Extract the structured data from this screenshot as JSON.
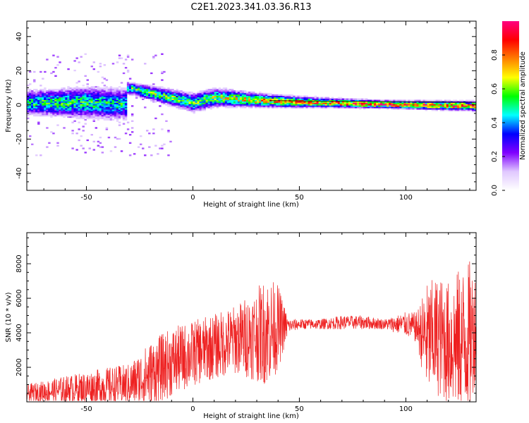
{
  "figure": {
    "title": "C2E1.2023.341.03.36.R13"
  },
  "chart_data": [
    {
      "type": "heatmap",
      "xlabel": "Height of straight line (km)",
      "ylabel": "Frequency (Hz)",
      "xlim": [
        -78,
        133
      ],
      "ylim": [
        -50,
        49
      ],
      "x_ticks": [
        -50,
        0,
        50,
        100
      ],
      "y_ticks": [
        -40,
        -20,
        0,
        20,
        40
      ],
      "grid": false,
      "colorbar": {
        "label": "Normalized spectral amplitude",
        "range": [
          0.0,
          1.0
        ],
        "ticks": [
          "0.0",
          "0.2",
          "0.4",
          "0.6",
          "0.8"
        ],
        "tick_values": [
          0.0,
          0.2,
          0.4,
          0.6,
          0.8
        ],
        "colors": [
          "#ffffff",
          "#e0c8ff",
          "#8000ff",
          "#0000ff",
          "#00ffff",
          "#00ff00",
          "#ffff00",
          "#ff8000",
          "#ff0000",
          "#ff0080"
        ]
      },
      "ridge": {
        "description_points": [
          {
            "x": -75,
            "center": 1,
            "spread": 4,
            "amp": 0.55
          },
          {
            "x": -50,
            "center": 1,
            "spread": 5,
            "amp": 0.55
          },
          {
            "x": -30,
            "center": 0,
            "spread": 5,
            "amp": 0.5
          },
          {
            "x": -29,
            "center": 9,
            "spread": 2,
            "amp": 0.6
          },
          {
            "x": 0,
            "center": 1,
            "spread": 3,
            "amp": 0.6
          },
          {
            "x": 10,
            "center": 4,
            "spread": 3,
            "amp": 0.65
          },
          {
            "x": 35,
            "center": 2,
            "spread": 2,
            "amp": 0.8
          },
          {
            "x": 60,
            "center": 1,
            "spread": 1.5,
            "amp": 0.85
          },
          {
            "x": 90,
            "center": 0,
            "spread": 1.2,
            "amp": 0.95
          },
          {
            "x": 133,
            "center": -1,
            "spread": 1.5,
            "amp": 0.9
          }
        ],
        "reference_line": [
          [
            36,
            2.5
          ],
          [
            133,
            1.5
          ]
        ]
      }
    },
    {
      "type": "line",
      "xlabel": "Height of straight line (km)",
      "ylabel": "SNR (10 * v/v)",
      "xlim": [
        -78,
        133
      ],
      "ylim": [
        0,
        9800
      ],
      "x_ticks": [
        -50,
        0,
        50,
        100
      ],
      "y_ticks": [
        2000,
        4000,
        6000,
        8000
      ],
      "grid": false,
      "series_color": "#ee2020",
      "envelope": {
        "x": [
          -78,
          -60,
          -40,
          -30,
          -20,
          -10,
          0,
          10,
          20,
          30,
          35,
          40,
          45,
          50,
          60,
          70,
          80,
          90,
          100,
          105,
          110,
          115,
          120,
          125,
          130,
          133
        ],
        "mean": [
          500,
          700,
          900,
          1000,
          1600,
          2300,
          2800,
          3200,
          3600,
          3900,
          4100,
          4300,
          4400,
          4500,
          4500,
          4600,
          4600,
          4500,
          4500,
          4300,
          3600,
          3800,
          3400,
          3500,
          3700,
          4500
        ],
        "amplitude": [
          500,
          800,
          1100,
          1200,
          1900,
          2000,
          1900,
          1900,
          2000,
          2700,
          3200,
          2500,
          400,
          300,
          300,
          400,
          400,
          300,
          700,
          900,
          3300,
          3500,
          3600,
          4200,
          4500,
          3000
        ]
      }
    }
  ]
}
